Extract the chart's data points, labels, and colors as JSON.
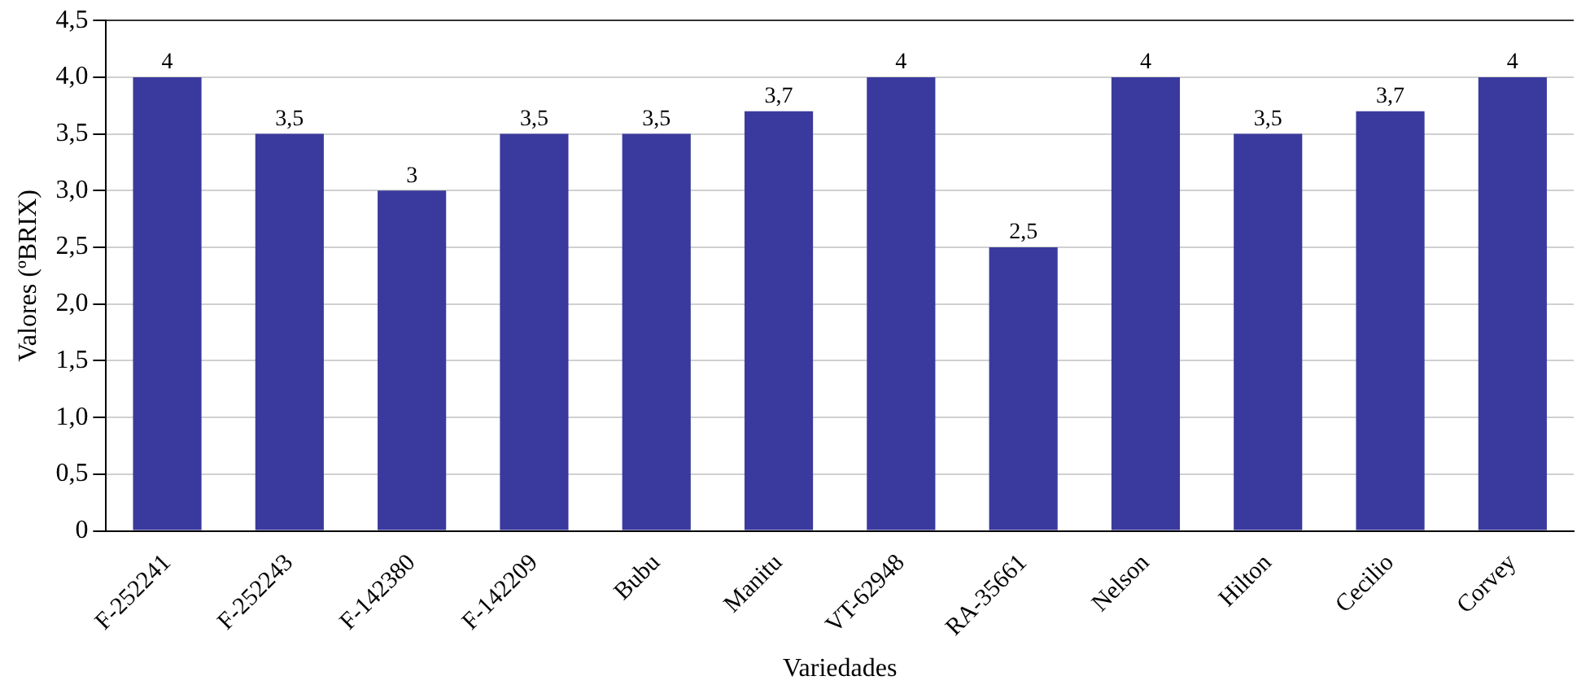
{
  "chart_data": {
    "type": "bar",
    "xlabel": "Variedades",
    "ylabel": "Valores (ºBRIX)",
    "categories": [
      "F-252241",
      "F-252243",
      "F-142380",
      "F-142209",
      "Bubu",
      "Manitu",
      "VT-62948",
      "RA-35661",
      "Nelson",
      "Hilton",
      "Cecilio",
      "Corvey"
    ],
    "values": [
      4,
      3.5,
      3,
      3.5,
      3.5,
      3.7,
      4,
      2.5,
      4,
      3.5,
      3.7,
      4
    ],
    "value_labels": [
      "4",
      "3,5",
      "3",
      "3,5",
      "3,5",
      "3,7",
      "4",
      "2,5",
      "4",
      "3,5",
      "3,7",
      "4"
    ],
    "color": "#3a3a9e",
    "ylim": [
      0,
      4.5
    ],
    "yticks": [
      {
        "value": 0,
        "label": "0"
      },
      {
        "value": 0.5,
        "label": "0,5"
      },
      {
        "value": 1,
        "label": "1,0"
      },
      {
        "value": 1.5,
        "label": "1,5"
      },
      {
        "value": 2,
        "label": "2,0"
      },
      {
        "value": 2.5,
        "label": "2,5"
      },
      {
        "value": 3,
        "label": "3,0"
      },
      {
        "value": 3.5,
        "label": "3,5"
      },
      {
        "value": 4,
        "label": "4,0"
      },
      {
        "value": 4.5,
        "label": "4,5"
      }
    ],
    "grid": "y",
    "legend": false
  }
}
